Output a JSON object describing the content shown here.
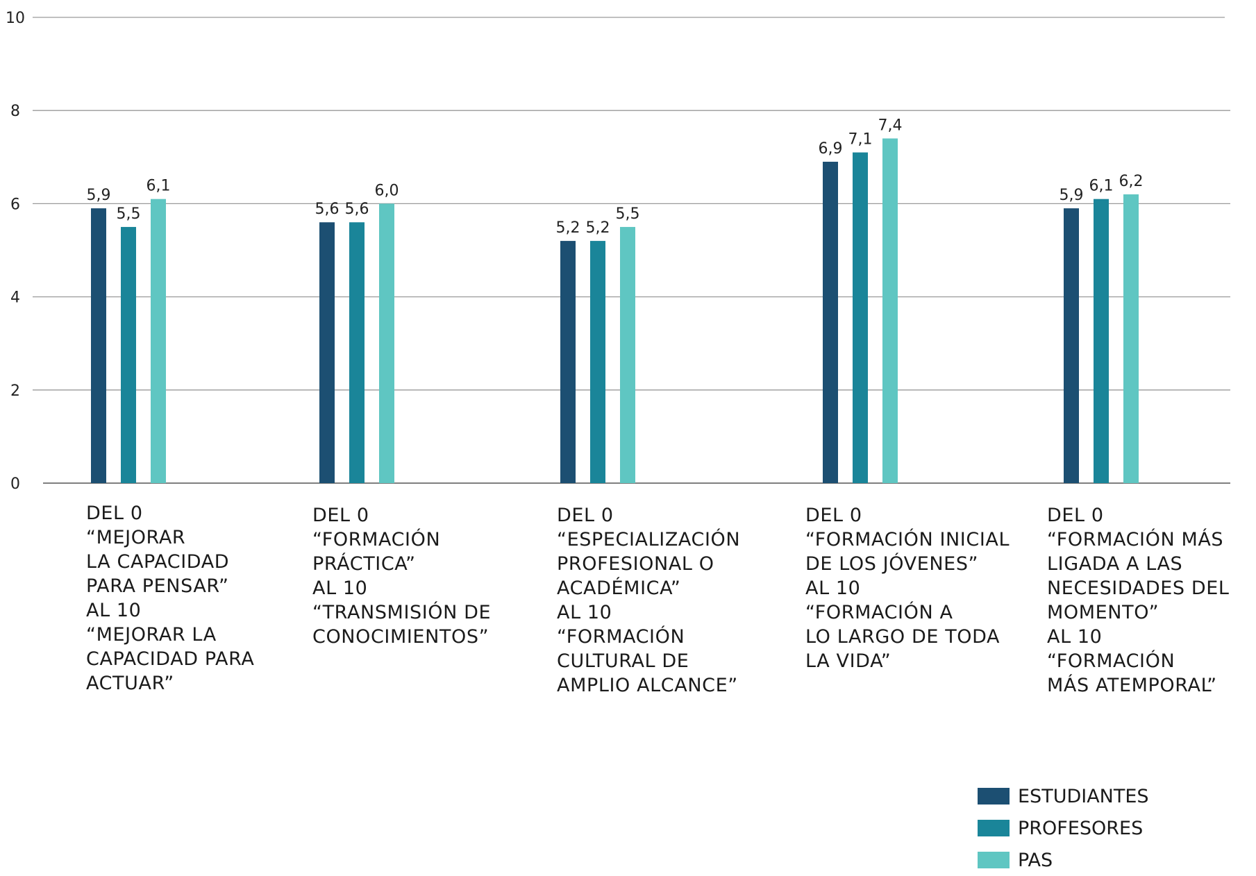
{
  "chart_data": {
    "type": "bar",
    "ylim": [
      0,
      10
    ],
    "yticks": [
      0,
      2,
      4,
      6,
      8,
      10
    ],
    "categories": [
      [
        "DEL 0",
        "“MEJORAR",
        "LA CAPACIDAD",
        "PARA PENSAR”",
        "AL 10",
        "“MEJORAR LA",
        "CAPACIDAD PARA",
        "ACTUAR”"
      ],
      [
        "DEL 0",
        "“FORMACIÓN",
        "PRÁCTICA”",
        "AL 10",
        "“TRANSMISIÓN DE",
        "CONOCIMIENTOS”"
      ],
      [
        "DEL 0",
        "“ESPECIALIZACIÓN",
        "PROFESIONAL O",
        "ACADÉMICA”",
        "AL 10",
        "“FORMACIÓN",
        "CULTURAL DE",
        "AMPLIO ALCANCE”"
      ],
      [
        "DEL 0",
        "“FORMACIÓN INICIAL",
        "DE LOS JÓVENES”",
        "AL 10",
        "“FORMACIÓN A",
        "LO LARGO DE TODA",
        "LA VIDA”"
      ],
      [
        "DEL 0",
        "“FORMACIÓN MÁS",
        "LIGADA A LAS",
        "NECESIDADES DEL",
        "MOMENTO”",
        "AL 10",
        "“FORMACIÓN",
        "MÁS ATEMPORAL”"
      ]
    ],
    "series": [
      {
        "name": "ESTUDIANTES",
        "color": "#1c4f72",
        "values": [
          5.9,
          5.6,
          5.2,
          6.9,
          5.9
        ],
        "labels": [
          "5,9",
          "5,6",
          "5,2",
          "6,9",
          "5,9"
        ]
      },
      {
        "name": "PROFESORES",
        "color": "#1a8599",
        "values": [
          5.5,
          5.6,
          5.2,
          7.1,
          6.1
        ],
        "labels": [
          "5,5",
          "5,6",
          "5,2",
          "7,1",
          "6,1"
        ]
      },
      {
        "name": "PAS",
        "color": "#5fc6c2",
        "values": [
          6.1,
          6.0,
          5.5,
          7.4,
          6.2
        ],
        "labels": [
          "6,1",
          "6,0",
          "5,5",
          "7,4",
          "6,2"
        ]
      }
    ],
    "grid": true,
    "legend_position": "bottom-right"
  }
}
